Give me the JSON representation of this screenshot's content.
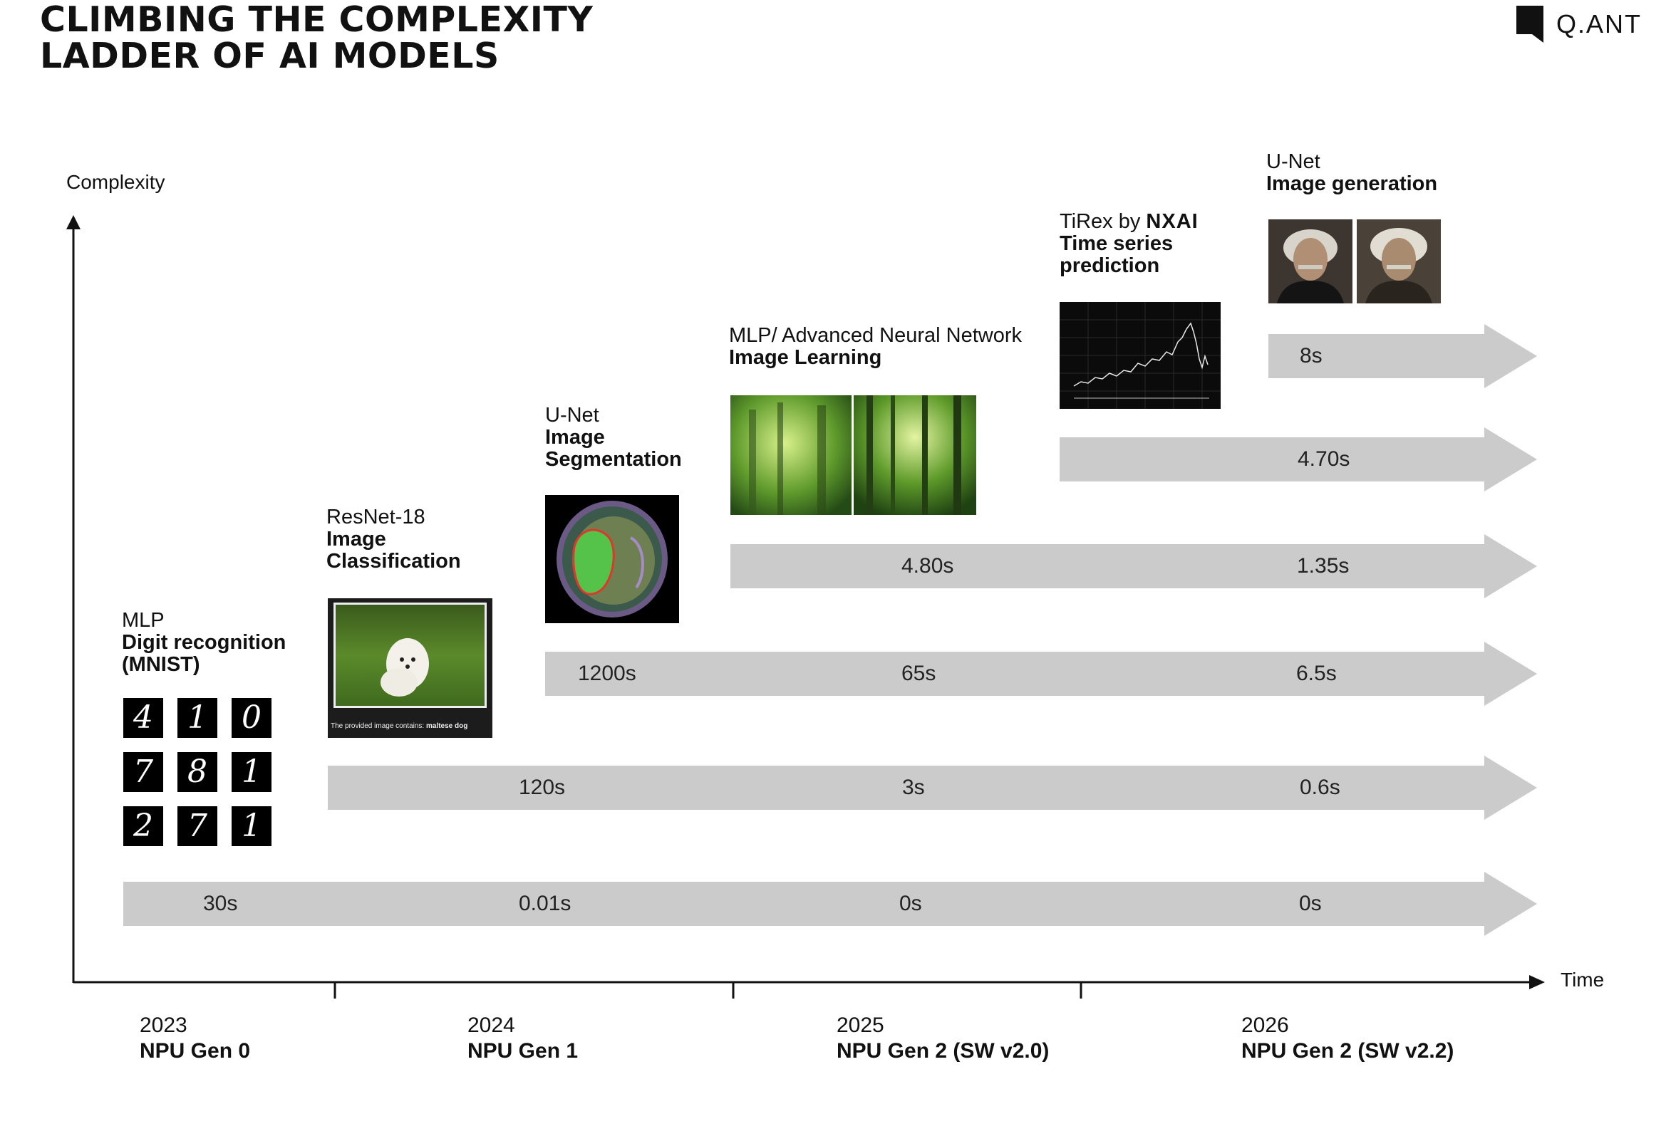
{
  "title": {
    "line1": "CLIMBING THE COMPLEXITY",
    "line2": "LADDER OF AI MODELS"
  },
  "logo": {
    "text": "Q.ANT"
  },
  "axes": {
    "y_label": "Complexity",
    "x_label": "Time"
  },
  "years": [
    {
      "year": "2023",
      "gen": "NPU Gen 0"
    },
    {
      "year": "2024",
      "gen": "NPU Gen 1"
    },
    {
      "year": "2025",
      "gen": "NPU Gen 2 (SW v2.0)"
    },
    {
      "year": "2026",
      "gen": "NPU Gen 2 (SW v2.2)"
    }
  ],
  "models": [
    {
      "name": "MLP",
      "task_line1": "Digit recognition",
      "task_line2": "(MNIST)",
      "times": [
        "30s",
        "0.01s",
        "0s",
        "0s"
      ]
    },
    {
      "name": "ResNet-18",
      "task_line1": "Image",
      "task_line2": "Classification",
      "caption_prefix": "The provided image contains:",
      "caption_label": "maltese dog",
      "times": [
        "120s",
        "3s",
        "0.6s"
      ]
    },
    {
      "name": "U-Net",
      "task_line1": "Image",
      "task_line2": "Segmentation",
      "times": [
        "1200s",
        "65s",
        "6.5s"
      ]
    },
    {
      "name": "MLP/ Advanced Neural Network",
      "task_line1": "Image Learning",
      "times": [
        "4.80s",
        "1.35s"
      ]
    },
    {
      "name_prefix": "TiRex by",
      "name_brand": "NXAI",
      "task_line1": "Time series",
      "task_line2": "prediction",
      "times": [
        "4.70s"
      ]
    },
    {
      "name": "U-Net",
      "task_line1": "Image generation",
      "times": [
        "8s"
      ]
    }
  ],
  "mnist_digits": [
    "4",
    "1",
    "0",
    "7",
    "8",
    "1",
    "2",
    "7",
    "1"
  ],
  "colors": {
    "arrow": "#cbcbcb",
    "text": "#111111",
    "axis": "#111111"
  },
  "icons": [
    "qant-logo-icon"
  ]
}
